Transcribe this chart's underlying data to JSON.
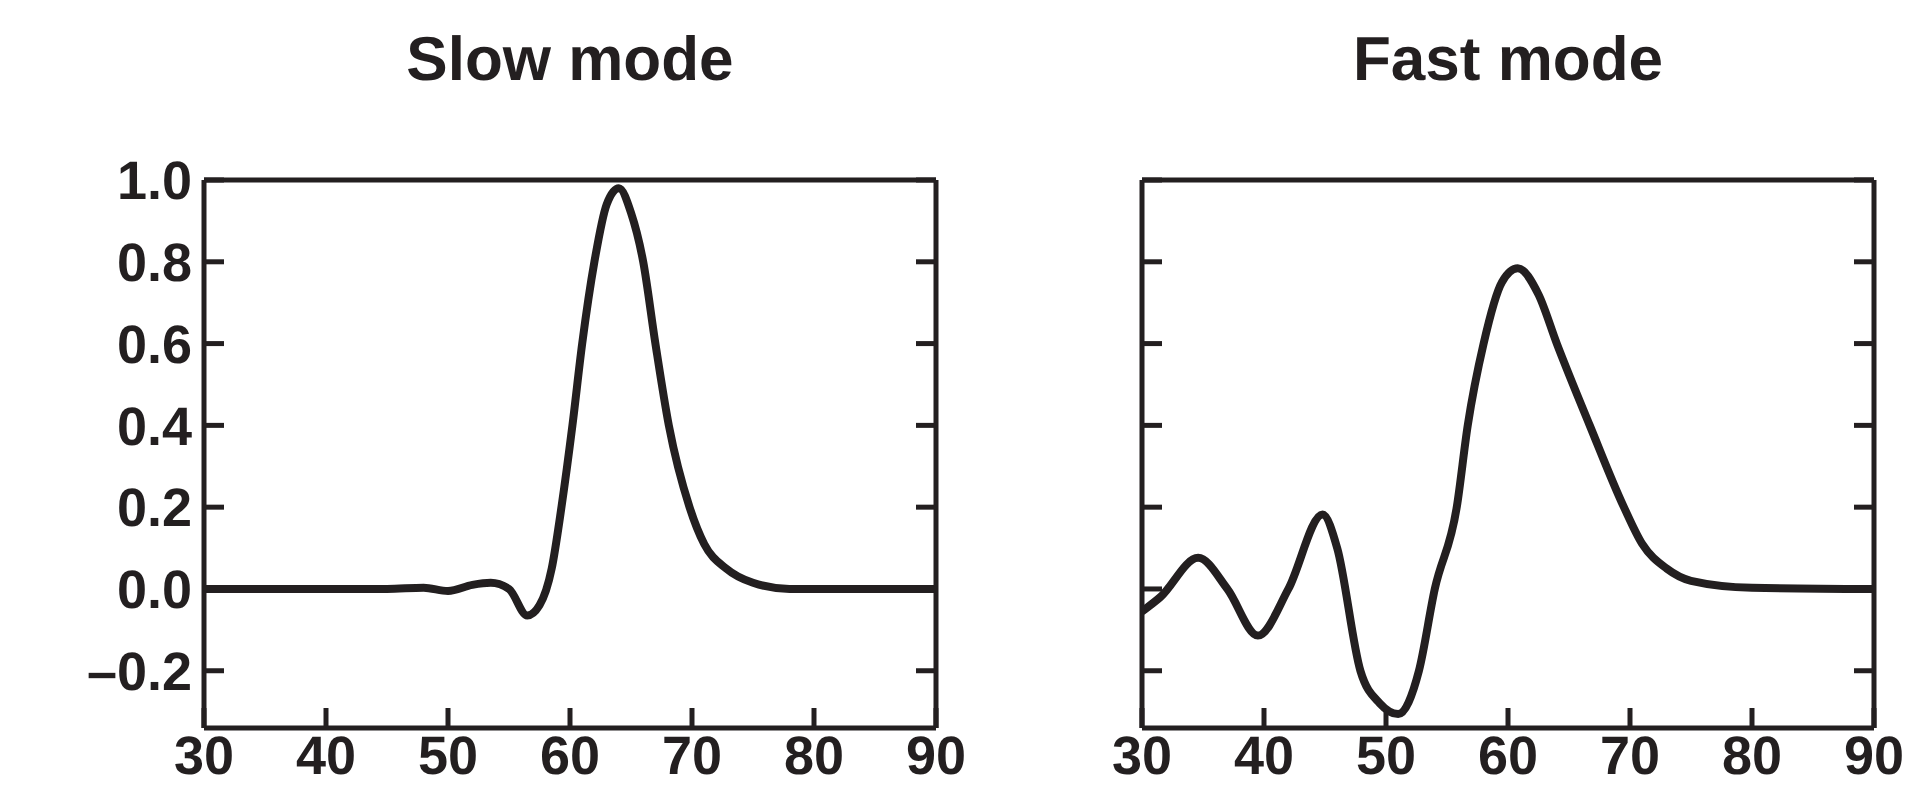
{
  "chart_data": [
    {
      "type": "line",
      "title": "Slow mode",
      "xlim": [
        30,
        90
      ],
      "xticks": [
        30,
        40,
        50,
        60,
        70,
        80,
        90
      ],
      "ylim": [
        -0.34,
        1.0
      ],
      "yticks": [
        {
          "value": -0.2,
          "label": "–0.2"
        },
        {
          "value": 0,
          "label": "0.0"
        },
        {
          "value": 0.2,
          "label": "0.2"
        },
        {
          "value": 0.4,
          "label": "0.4"
        },
        {
          "value": 0.6,
          "label": "0.6"
        },
        {
          "value": 0.8,
          "label": "0.8"
        },
        {
          "value": 1.0,
          "label": "1.0"
        }
      ],
      "marker": "none",
      "line_style": "solid",
      "series": [
        {
          "color": "#231f20",
          "x": [
            30,
            45,
            48,
            50,
            52,
            53.5,
            55,
            56.5,
            57.5,
            58.5,
            59.3,
            60.2,
            61,
            62,
            63,
            64,
            65,
            66,
            67,
            68.1,
            69.8,
            71,
            72.8,
            75,
            78,
            90
          ],
          "values": [
            0,
            0,
            0.003,
            -0.005,
            0.01,
            0.015,
            0,
            -0.065,
            -0.04,
            0.05,
            0.2,
            0.4,
            0.6,
            0.8,
            0.94,
            0.98,
            0.92,
            0.8,
            0.6,
            0.4,
            0.2,
            0.11,
            0.05,
            0.015,
            0,
            0
          ]
        }
      ]
    },
    {
      "type": "line",
      "title": "Fast mode",
      "xlim": [
        30,
        90
      ],
      "xticks": [
        30,
        40,
        50,
        60,
        70,
        80,
        90
      ],
      "ylim": [
        -0.34,
        1.0
      ],
      "yticks": [
        -0.2,
        0,
        0.2,
        0.4,
        0.6,
        0.8,
        1.0
      ],
      "tick_labels": "x",
      "marker": "none",
      "line_style": "solid",
      "series": [
        {
          "color": "#231f20",
          "x": [
            30,
            31.5,
            34.6,
            37,
            39.5,
            42,
            44.8,
            46,
            47.9,
            49.5,
            51,
            52.7,
            54,
            55.8,
            56.7,
            58,
            59.5,
            60.8,
            62.5,
            64,
            66.7,
            69.5,
            71,
            73,
            75,
            80,
            90
          ],
          "values": [
            -0.055,
            -0.02,
            0.076,
            0.0,
            -0.114,
            0.0,
            0.182,
            0.1,
            -0.2,
            -0.28,
            -0.306,
            -0.2,
            0,
            0.2,
            0.4,
            0.6,
            0.75,
            0.784,
            0.72,
            0.6,
            0.4,
            0.2,
            0.11,
            0.05,
            0.02,
            0.003,
            0
          ]
        }
      ]
    }
  ]
}
